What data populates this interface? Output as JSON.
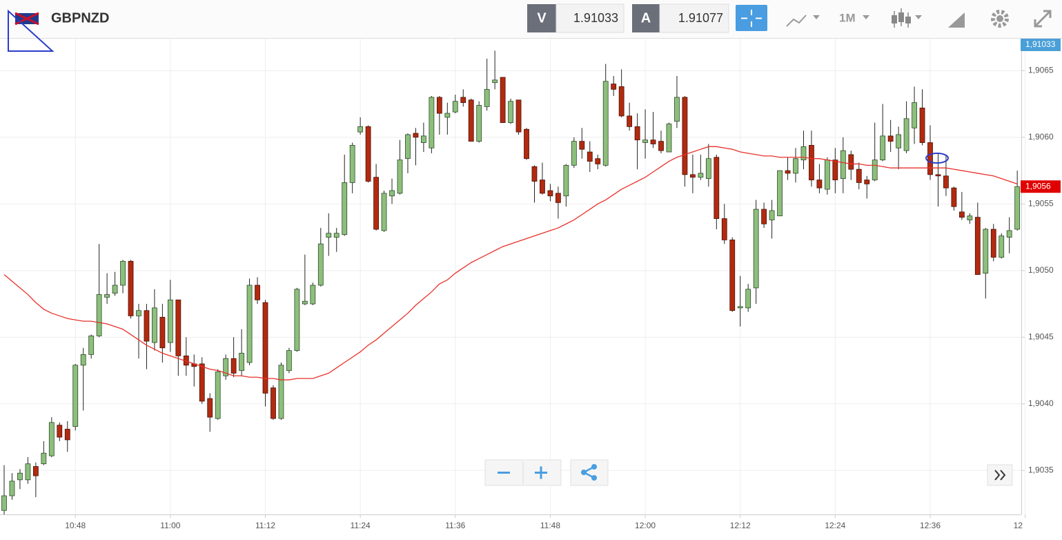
{
  "chart_data": {
    "type": "candlestick",
    "symbol": "GBPNZD",
    "bid_label": "V",
    "bid": 1.91033,
    "ask_label": "A",
    "ask": 1.91077,
    "timeframe": "1M",
    "up_color": "#8dbf7c",
    "down_color": "#b22a10",
    "grid": true,
    "ylim": [
      1.90317,
      1.90674
    ],
    "yticks": [
      {
        "value": 1.9035,
        "label": "1,9035"
      },
      {
        "value": 1.904,
        "label": "1,9040"
      },
      {
        "value": 1.9045,
        "label": "1,9045"
      },
      {
        "value": 1.905,
        "label": "1,9050"
      },
      {
        "value": 1.9055,
        "label": "1,9055"
      },
      {
        "value": 1.906,
        "label": "1,9060"
      },
      {
        "value": 1.9065,
        "label": "1,9065"
      }
    ],
    "bid_tag": {
      "value": 1.91033,
      "label": "1,91033",
      "color": "#4a9fd8"
    },
    "last_tag": {
      "value": 1.90563,
      "label": "1,9056",
      "color": "#e00000"
    },
    "categories": [
      null,
      null,
      null,
      null,
      null,
      null,
      null,
      null,
      null,
      "10:48",
      null,
      null,
      null,
      null,
      null,
      null,
      null,
      null,
      null,
      null,
      null,
      "11:00",
      null,
      null,
      null,
      null,
      null,
      null,
      null,
      null,
      null,
      null,
      null,
      "11:12",
      null,
      null,
      null,
      null,
      null,
      null,
      null,
      null,
      null,
      null,
      null,
      "11:24",
      null,
      null,
      null,
      null,
      null,
      null,
      null,
      null,
      null,
      null,
      null,
      "11:36",
      null,
      null,
      null,
      null,
      null,
      null,
      null,
      null,
      null,
      null,
      null,
      "11:48",
      null,
      null,
      null,
      null,
      null,
      null,
      null,
      null,
      null,
      null,
      null,
      "12:00",
      null,
      null,
      null,
      null,
      null,
      null,
      null,
      null,
      null,
      null,
      null,
      "12:12",
      null,
      null,
      null,
      null,
      null,
      null,
      null,
      null,
      null,
      null,
      null,
      "12:24",
      null,
      null,
      null,
      null,
      null,
      null,
      null,
      null,
      null,
      null,
      null,
      "12:36",
      null,
      null,
      null,
      null,
      null,
      null,
      null,
      null,
      null,
      null,
      null,
      "12"
    ],
    "open": [
      1.9032,
      1.90331,
      1.90343,
      1.90343,
      1.90353,
      1.90355,
      1.90361,
      1.90384,
      1.90381,
      1.90383,
      1.90429,
      1.90437,
      1.90451,
      1.9048,
      1.90483,
      1.90489,
      1.90507,
      1.90466,
      1.9047,
      1.90446,
      1.90465,
      1.90446,
      1.90478,
      1.90436,
      1.9043,
      1.9043,
      1.90404,
      1.90389,
      1.90421,
      1.90434,
      1.90425,
      1.90431,
      1.90489,
      1.90476,
      1.90412,
      1.90389,
      1.90425,
      1.9044,
      1.90475,
      1.90475,
      1.90489,
      1.90525,
      1.90525,
      1.90527,
      1.90566,
      1.90604,
      1.90608,
      1.9057,
      1.9053,
      1.90556,
      1.90558,
      1.90584,
      1.90603,
      1.90596,
      1.90592,
      1.9063,
      1.90615,
      1.90619,
      1.9063,
      1.90628,
      1.90597,
      1.90623,
      1.90641,
      1.90645,
      1.90611,
      1.90628,
      1.90606,
      1.90578,
      1.90568,
      1.9056,
      1.90558,
      1.90556,
      1.90579,
      1.90597,
      1.90589,
      1.90584,
      1.90579,
      1.9064,
      1.90638,
      1.90616,
      1.90608,
      1.90596,
      1.90598,
      1.90597,
      1.90589,
      1.90612,
      1.9063,
      1.90572,
      1.9057,
      1.90569,
      1.90585,
      1.90539,
      1.90523,
      1.90472,
      1.90472,
      1.90487,
      1.90546,
      1.90538,
      1.90541,
      1.90575,
      1.90573,
      1.90583,
      1.90594,
      1.90568,
      1.90561,
      1.90583,
      1.90569,
      1.90587,
      1.90576,
      1.90568,
      1.90568,
      1.90583,
      1.90601,
      1.90592,
      1.9059,
      1.90607,
      1.90622,
      1.90596,
      1.90572,
      1.90571,
      1.90562,
      1.90544,
      1.90538,
      1.9054,
      1.90498,
      1.90531,
      1.9051,
      1.90525,
      1.90531,
      null
    ],
    "high": [
      1.90354,
      1.90348,
      1.90351,
      1.9036,
      1.90356,
      1.90372,
      1.9039,
      1.90386,
      1.90387,
      1.9043,
      1.90442,
      1.90452,
      1.9052,
      1.90498,
      1.90499,
      1.90508,
      1.90508,
      1.90475,
      1.90475,
      1.90486,
      1.90475,
      1.90493,
      1.90478,
      1.9045,
      1.90437,
      1.90435,
      1.90408,
      1.90426,
      1.90437,
      1.9045,
      1.90456,
      1.90494,
      1.90495,
      1.90478,
      1.90414,
      1.90431,
      1.90442,
      1.90487,
      1.90512,
      1.90491,
      1.90532,
      1.90543,
      1.90532,
      1.90587,
      1.90596,
      1.90615,
      1.90609,
      1.9058,
      1.9056,
      1.90569,
      1.90598,
      1.90603,
      1.90607,
      1.90611,
      1.90631,
      1.90631,
      1.90626,
      1.90632,
      1.90636,
      1.90629,
      1.90627,
      1.90659,
      1.90665,
      1.90645,
      1.90629,
      1.90628,
      1.90607,
      1.90579,
      1.90581,
      1.90565,
      1.90563,
      1.9058,
      1.906,
      1.90607,
      1.90597,
      1.90587,
      1.90655,
      1.90646,
      1.90651,
      1.90626,
      1.90618,
      1.90621,
      1.90619,
      1.90605,
      1.90611,
      1.90646,
      1.90631,
      1.90587,
      1.90587,
      1.90595,
      1.90587,
      1.9055,
      1.90525,
      1.90496,
      1.9049,
      1.90553,
      1.90551,
      1.90553,
      1.90575,
      1.90585,
      1.90592,
      1.90605,
      1.90605,
      1.9058,
      1.90585,
      1.90592,
      1.906,
      1.9059,
      1.90581,
      1.90571,
      1.90611,
      1.90625,
      1.90613,
      1.90608,
      1.90627,
      1.90638,
      1.90636,
      1.90609,
      1.90588,
      1.90587,
      1.90563,
      1.90559,
      1.90543,
      1.90551,
      1.90532,
      1.90535,
      1.90528,
      1.9054,
      1.90575,
      null
    ],
    "low": [
      1.90317,
      1.90328,
      1.90336,
      1.9034,
      1.9033,
      1.90354,
      1.9036,
      1.90372,
      1.90364,
      1.9038,
      1.90395,
      1.90434,
      1.9045,
      1.90475,
      1.90481,
      1.90483,
      1.90464,
      1.90434,
      1.90426,
      1.9044,
      1.90431,
      1.90439,
      1.90421,
      1.90421,
      1.90413,
      1.904,
      1.90379,
      1.90388,
      1.90418,
      1.9042,
      1.90421,
      1.90429,
      1.90475,
      1.90398,
      1.90388,
      1.90388,
      1.90423,
      1.90439,
      1.90474,
      1.90474,
      1.90488,
      1.90511,
      1.90514,
      1.90526,
      1.90558,
      1.90602,
      1.90566,
      1.9053,
      1.90529,
      1.9055,
      1.90557,
      1.90573,
      1.90579,
      1.90589,
      1.90588,
      1.90602,
      1.90602,
      1.90618,
      1.90623,
      1.90597,
      1.90596,
      1.9062,
      1.90636,
      1.90611,
      1.9061,
      1.90602,
      1.90583,
      1.90551,
      1.90557,
      1.90552,
      1.90539,
      1.90548,
      1.90577,
      1.90584,
      1.90574,
      1.90576,
      1.90578,
      1.90631,
      1.90615,
      1.90605,
      1.90576,
      1.90584,
      1.90592,
      1.90588,
      1.90589,
      1.90607,
      1.90563,
      1.90558,
      1.90568,
      1.90563,
      1.90531,
      1.9052,
      1.90469,
      1.90458,
      1.90469,
      1.90475,
      1.90532,
      1.90524,
      1.90541,
      1.90568,
      1.90566,
      1.90576,
      1.90563,
      1.90558,
      1.90557,
      1.90558,
      1.90558,
      1.90568,
      1.90561,
      1.90554,
      1.90567,
      1.90582,
      1.90589,
      1.90576,
      1.90588,
      1.90595,
      1.90594,
      1.90568,
      1.90548,
      1.90556,
      1.90545,
      1.90538,
      1.90535,
      1.90497,
      1.90479,
      1.90507,
      1.90509,
      1.90513,
      1.9053,
      null
    ],
    "close": [
      1.90331,
      1.90342,
      1.90348,
      1.90355,
      1.90346,
      1.90363,
      1.90386,
      1.90375,
      1.90373,
      1.90429,
      1.90437,
      1.90451,
      1.90482,
      1.90482,
      1.90489,
      1.90507,
      1.90466,
      1.9047,
      1.90447,
      1.90472,
      1.90442,
      1.90478,
      1.90436,
      1.90429,
      1.90428,
      1.90402,
      1.9039,
      1.90424,
      1.90434,
      1.90423,
      1.90438,
      1.90489,
      1.90478,
      1.90408,
      1.90389,
      1.90429,
      1.9044,
      1.90486,
      1.90477,
      1.90489,
      1.9052,
      1.90528,
      1.90528,
      1.90566,
      1.90594,
      1.90608,
      1.90567,
      1.90531,
      1.90558,
      1.9056,
      1.90583,
      1.90602,
      1.906,
      1.90601,
      1.9063,
      1.90618,
      1.90618,
      1.90627,
      1.90626,
      1.90597,
      1.90624,
      1.90636,
      1.90643,
      1.90611,
      1.90627,
      1.90604,
      1.90584,
      1.90567,
      1.90558,
      1.90556,
      1.90551,
      1.90579,
      1.90597,
      1.90591,
      1.90582,
      1.9058,
      1.90642,
      1.90636,
      1.90616,
      1.90608,
      1.90598,
      1.90598,
      1.90595,
      1.9059,
      1.9061,
      1.9063,
      1.90572,
      1.9057,
      1.90573,
      1.90584,
      1.90539,
      1.90523,
      1.9047,
      1.90473,
      1.90486,
      1.90546,
      1.90535,
      1.90545,
      1.90575,
      1.90573,
      1.90584,
      1.90593,
      1.90568,
      1.90562,
      1.90583,
      1.90568,
      1.9059,
      1.90576,
      1.90566,
      1.90565,
      1.90583,
      1.90601,
      1.90597,
      1.90602,
      1.90614,
      1.90626,
      1.90596,
      1.90572,
      1.90571,
      1.90562,
      1.90548,
      1.9054,
      1.90541,
      1.90497,
      1.90531,
      1.9051,
      1.90526,
      1.9053,
      1.90563,
      null
    ],
    "ma": {
      "color": "#e8302a",
      "values": [
        1.90497,
        1.90492,
        1.90487,
        1.90482,
        1.90476,
        1.90471,
        1.90468,
        1.90466,
        1.90464,
        1.90463,
        1.90462,
        1.90462,
        1.90461,
        1.9046,
        1.90458,
        1.90456,
        1.90452,
        1.90448,
        1.90444,
        1.90441,
        1.90438,
        1.90436,
        1.90434,
        1.90432,
        1.9043,
        1.90428,
        1.90426,
        1.90425,
        1.90423,
        1.90421,
        1.90421,
        1.9042,
        1.9042,
        1.90419,
        1.90419,
        1.90418,
        1.90418,
        1.90419,
        1.90419,
        1.90419,
        1.90421,
        1.90423,
        1.90427,
        1.90431,
        1.90435,
        1.90439,
        1.90444,
        1.90448,
        1.90453,
        1.90458,
        1.90463,
        1.90468,
        1.90474,
        1.90479,
        1.90484,
        1.9049,
        1.90493,
        1.90498,
        1.90502,
        1.90506,
        1.90509,
        1.90512,
        1.90515,
        1.90518,
        1.9052,
        1.90522,
        1.90524,
        1.90526,
        1.90528,
        1.9053,
        1.90532,
        1.90535,
        1.90538,
        1.90542,
        1.90546,
        1.9055,
        1.90553,
        1.90557,
        1.90561,
        1.90564,
        1.90567,
        1.9057,
        1.90574,
        1.90578,
        1.90582,
        1.90585,
        1.90587,
        1.90589,
        1.90591,
        1.90593,
        1.90593,
        1.90592,
        1.90591,
        1.90589,
        1.90588,
        1.90587,
        1.90586,
        1.90586,
        1.90585,
        1.90585,
        1.90585,
        1.90585,
        1.90584,
        1.90584,
        1.90583,
        1.90582,
        1.90581,
        1.9058,
        1.9058,
        1.90579,
        1.90579,
        1.90578,
        1.90577,
        1.90577,
        1.90577,
        1.90577,
        1.90577,
        1.90577,
        1.90577,
        1.90577,
        1.90576,
        1.90575,
        1.90574,
        1.90573,
        1.90572,
        1.90571,
        1.90569,
        1.90567,
        1.90565,
        null
      ]
    }
  }
}
